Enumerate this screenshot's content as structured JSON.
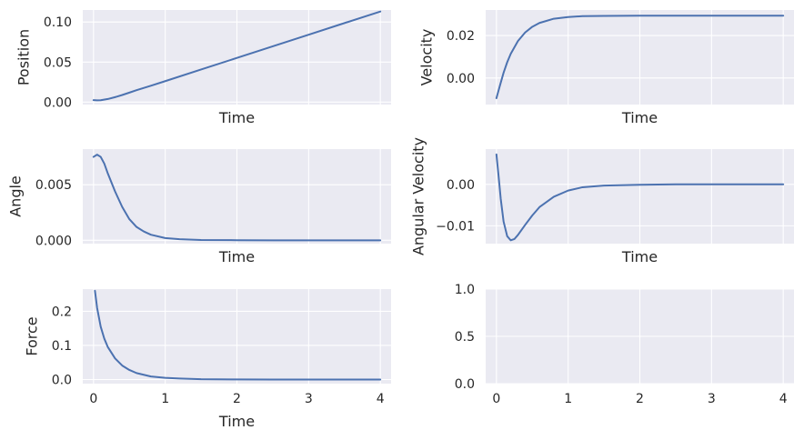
{
  "chart_data": [
    {
      "type": "line",
      "xlabel": "Time",
      "ylabel": "Position",
      "xlim": [
        -0.15,
        4.15
      ],
      "ylim": [
        -0.003,
        0.115
      ],
      "yticks": [
        0.0,
        0.05,
        0.1
      ],
      "ytick_labels": [
        "0.00",
        "0.05",
        "0.10"
      ],
      "xticks": [
        0,
        1,
        2,
        3,
        4
      ],
      "show_xtick_labels": false,
      "grid": true,
      "series": [
        {
          "name": "Position",
          "x": [
            0,
            0.05,
            0.1,
            0.2,
            0.3,
            0.4,
            0.5,
            0.6,
            0.8,
            1,
            1.5,
            2,
            2.5,
            3,
            3.5,
            4
          ],
          "y": [
            0.0025,
            0.0022,
            0.0024,
            0.0039,
            0.0062,
            0.0089,
            0.0119,
            0.0149,
            0.0205,
            0.0262,
            0.0407,
            0.0552,
            0.0697,
            0.0842,
            0.0987,
            0.1131
          ]
        }
      ]
    },
    {
      "type": "line",
      "xlabel": "Time",
      "ylabel": "Velocity",
      "xlim": [
        -0.15,
        4.15
      ],
      "ylim": [
        -0.0125,
        0.032
      ],
      "yticks": [
        0.0,
        0.02
      ],
      "ytick_labels": [
        "0.00",
        "0.02"
      ],
      "xticks": [
        0,
        1,
        2,
        3,
        4
      ],
      "show_xtick_labels": false,
      "grid": true,
      "series": [
        {
          "name": "Velocity",
          "x": [
            0,
            0.05,
            0.1,
            0.15,
            0.2,
            0.3,
            0.4,
            0.5,
            0.6,
            0.8,
            1,
            1.2,
            1.5,
            2,
            2.5,
            3,
            4
          ],
          "y": [
            -0.0095,
            -0.0034,
            0.0025,
            0.0074,
            0.0114,
            0.0174,
            0.0214,
            0.0241,
            0.0259,
            0.0279,
            0.0287,
            0.0291,
            0.0292,
            0.0293,
            0.0293,
            0.0293,
            0.0293
          ]
        }
      ]
    },
    {
      "type": "line",
      "xlabel": "Time",
      "ylabel": "Angle",
      "xlim": [
        -0.15,
        4.15
      ],
      "ylim": [
        -0.0003,
        0.0082
      ],
      "yticks": [
        0.0,
        0.005
      ],
      "ytick_labels": [
        "0.000",
        "0.005"
      ],
      "xticks": [
        0,
        1,
        2,
        3,
        4
      ],
      "show_xtick_labels": false,
      "grid": true,
      "series": [
        {
          "name": "Angle",
          "x": [
            0,
            0.05,
            0.1,
            0.15,
            0.2,
            0.3,
            0.4,
            0.5,
            0.6,
            0.7,
            0.8,
            1,
            1.2,
            1.5,
            2,
            2.5,
            3,
            4
          ],
          "y": [
            0.0075,
            0.0077,
            0.0075,
            0.0069,
            0.006,
            0.0044,
            0.003,
            0.0019,
            0.0012,
            0.0008,
            0.0005,
            0.0002,
            0.0001,
            3e-05,
            1e-05,
            0,
            0,
            0
          ]
        }
      ]
    },
    {
      "type": "line",
      "xlabel": "Time",
      "ylabel": "Angular Velocity",
      "xlim": [
        -0.15,
        4.15
      ],
      "ylim": [
        -0.0143,
        0.0085
      ],
      "yticks": [
        -0.01,
        0.0
      ],
      "ytick_labels": [
        "−0.01",
        "0.00"
      ],
      "xticks": [
        0,
        1,
        2,
        3,
        4
      ],
      "show_xtick_labels": false,
      "grid": true,
      "series": [
        {
          "name": "Angular Velocity",
          "x": [
            0,
            0.03,
            0.06,
            0.1,
            0.15,
            0.2,
            0.25,
            0.3,
            0.4,
            0.5,
            0.6,
            0.8,
            1,
            1.2,
            1.5,
            2,
            2.5,
            3,
            4
          ],
          "y": [
            0.0072,
            0.002,
            -0.0035,
            -0.009,
            -0.0125,
            -0.0135,
            -0.0132,
            -0.0122,
            -0.0098,
            -0.0075,
            -0.0055,
            -0.003,
            -0.0015,
            -0.0007,
            -0.0003,
            -0.0001,
            0,
            0,
            0
          ]
        }
      ]
    },
    {
      "type": "line",
      "xlabel": "Time",
      "ylabel": "Force",
      "xlim": [
        -0.15,
        4.15
      ],
      "ylim": [
        -0.012,
        0.265
      ],
      "yticks": [
        0.0,
        0.1,
        0.2
      ],
      "ytick_labels": [
        "0.0",
        "0.1",
        "0.2"
      ],
      "xticks": [
        0,
        1,
        2,
        3,
        4
      ],
      "xtick_labels": [
        "0",
        "1",
        "2",
        "3",
        "4"
      ],
      "show_xtick_labels": true,
      "grid": true,
      "series": [
        {
          "name": "Force",
          "x": [
            0.02,
            0.05,
            0.1,
            0.15,
            0.2,
            0.3,
            0.4,
            0.5,
            0.6,
            0.8,
            1,
            1.2,
            1.5,
            2,
            2.5,
            3,
            4
          ],
          "y": [
            0.26,
            0.21,
            0.155,
            0.12,
            0.095,
            0.062,
            0.041,
            0.028,
            0.019,
            0.009,
            0.005,
            0.003,
            0.001,
            0.0003,
            0.0001,
            0,
            0
          ]
        }
      ]
    },
    {
      "type": "line",
      "xlabel": "",
      "ylabel": "",
      "xlim": [
        -0.15,
        4.15
      ],
      "ylim": [
        0.0,
        1.0
      ],
      "yticks": [
        0.0,
        0.5,
        1.0
      ],
      "ytick_labels": [
        "0.0",
        "0.5",
        "1.0"
      ],
      "xticks": [
        0,
        1,
        2,
        3,
        4
      ],
      "xtick_labels": [
        "0",
        "1",
        "2",
        "3",
        "4"
      ],
      "show_xtick_labels": true,
      "grid": true,
      "series": []
    }
  ]
}
